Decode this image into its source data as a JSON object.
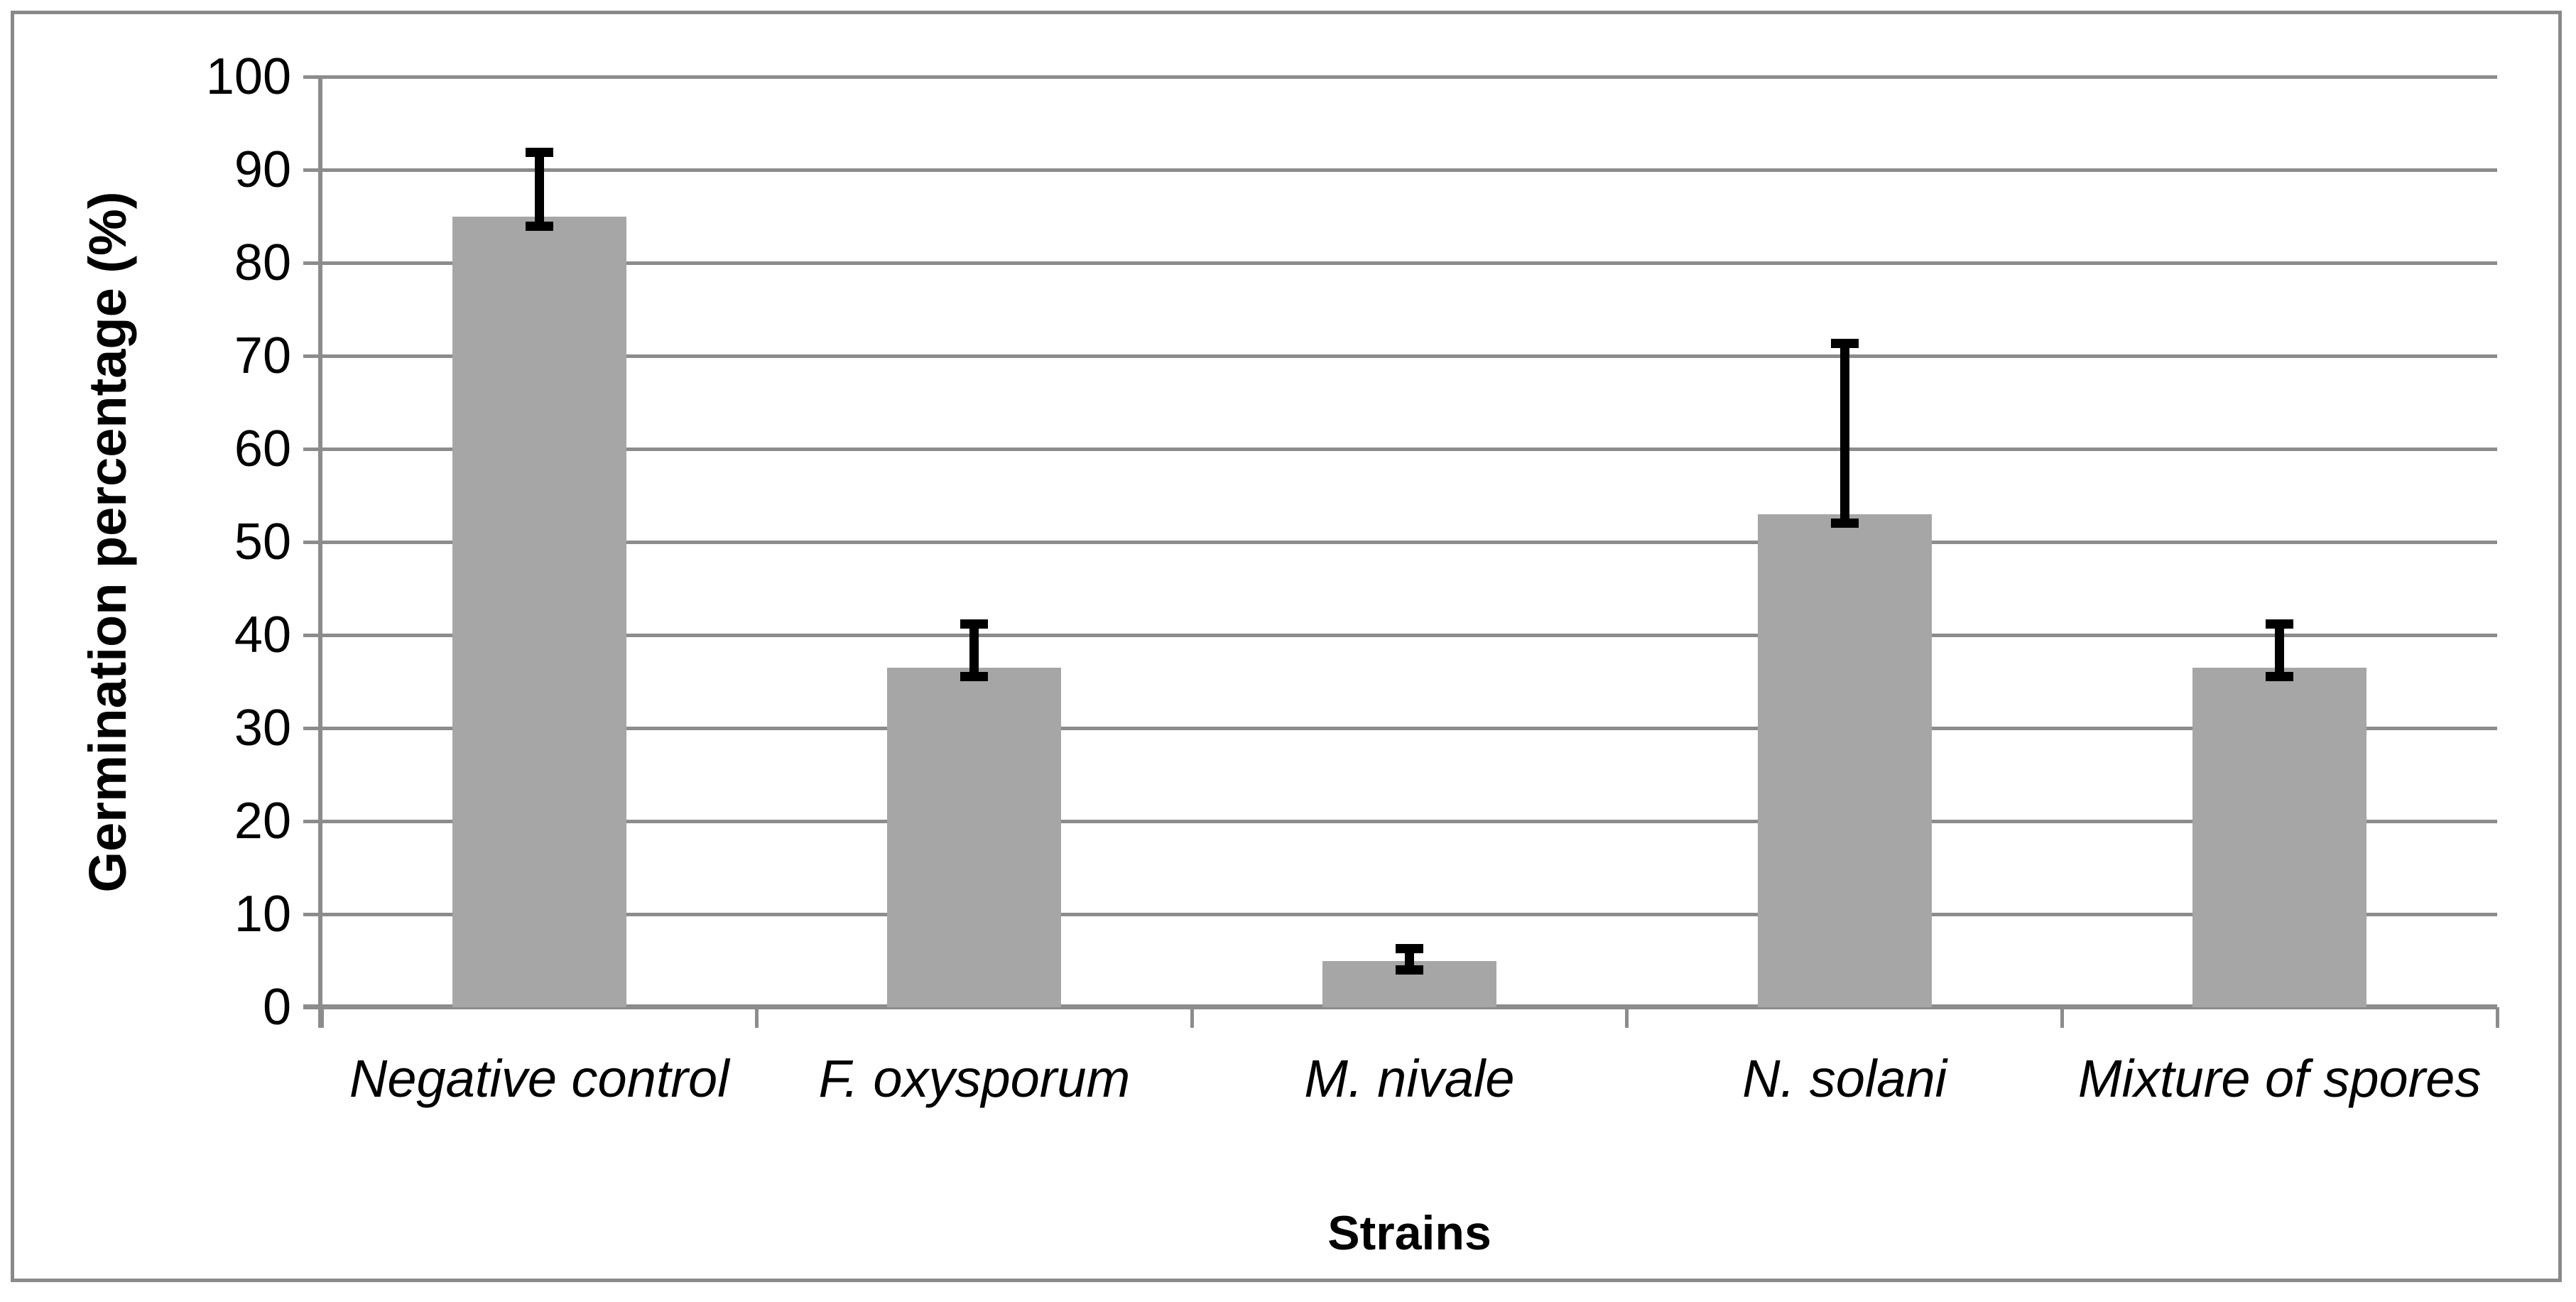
{
  "figure": {
    "background_color": "#FFFFFF",
    "border_color": "#898989"
  },
  "chart_data": {
    "type": "bar",
    "title": "",
    "xlabel": "Strains",
    "ylabel": "Germination percentage (%)",
    "categories": [
      "Negative control",
      "F. oxysporum",
      "M. nivale",
      "N. solani",
      "Mixture of spores"
    ],
    "values": [
      85,
      36.5,
      5,
      53,
      36.5
    ],
    "error_plus": [
      6.9,
      4.7,
      1.3,
      18.3,
      4.7
    ],
    "error_minus": [
      1.1,
      1.0,
      1.0,
      1.0,
      1.0
    ],
    "ylim": [
      0,
      100
    ],
    "yticks": [
      0,
      10,
      20,
      30,
      40,
      50,
      60,
      70,
      80,
      90,
      100
    ],
    "grid": true,
    "legend": false,
    "category_label_style": "italic",
    "bar_color": "#A6A6A6",
    "error_bar_color": "#000000",
    "axis_color": "#8C8C8C",
    "gridline_color": "#8C8C8C",
    "text_color": "#000000"
  }
}
